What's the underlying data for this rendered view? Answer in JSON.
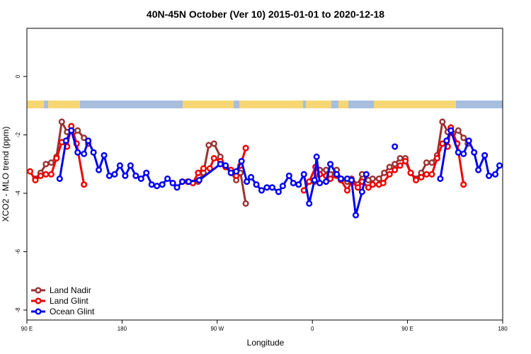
{
  "chart_data": {
    "type": "line",
    "title": "40N-45N October (Ver 10)   2015-01-01 to 2020-12-18",
    "xlabel": "Longitude",
    "ylabel": "XCO2 - MLO trend (ppm)",
    "xlim": [
      90,
      540
    ],
    "ylim": [
      -8.34,
      1.65
    ],
    "xticks": [
      {
        "value": 90,
        "label": "90 E"
      },
      180,
      {
        "value": 270,
        "label": "90 W"
      },
      {
        "value": 360,
        "label": "0"
      },
      {
        "value": 450,
        "label": "90 E"
      },
      {
        "value": 540,
        "label": "180"
      }
    ],
    "yticks": [
      0,
      -2,
      -4,
      -6,
      -8
    ],
    "legend": "bottom-left",
    "series": [
      {
        "name": "Land Nadir",
        "color": "#993333",
        "x": [
          98,
          103,
          108,
          113,
          118,
          123,
          128,
          134,
          138,
          144,
          148,
          252,
          257,
          262,
          267,
          273,
          278,
          283,
          288,
          292,
          297,
          362,
          367,
          373,
          377,
          383,
          387,
          393,
          397,
          403,
          407,
          413,
          417,
          423,
          428,
          433,
          438,
          443,
          448,
          453,
          458,
          463,
          468,
          473,
          478,
          483,
          488,
          493,
          498,
          503,
          507
        ],
        "values": [
          -3.5,
          -3.3,
          -3.0,
          -2.95,
          -2.75,
          -1.55,
          -1.9,
          -1.9,
          -1.85,
          -2.1,
          -2.3,
          -3.6,
          -3.3,
          -2.35,
          -2.3,
          -2.75,
          -3.1,
          -3.3,
          -3.55,
          -3.3,
          -4.35,
          -3.6,
          -3.2,
          -3.2,
          -3.35,
          -3.2,
          -3.5,
          -3.6,
          -3.5,
          -3.7,
          -3.35,
          -3.55,
          -3.5,
          -3.5,
          -3.3,
          -3.1,
          -3.0,
          -2.8,
          -2.8,
          -3.3,
          -3.5,
          -3.3,
          -2.95,
          -2.95,
          -2.7,
          -1.55,
          -1.9,
          -1.95,
          -1.85,
          -2.1,
          -2.3
        ]
      },
      {
        "name": "Land Glint",
        "color": "#ee0000",
        "x": [
          93,
          98,
          103,
          108,
          113,
          118,
          123,
          128,
          132,
          137,
          144,
          237,
          242,
          247,
          252,
          257,
          263,
          267,
          273,
          278,
          283,
          288,
          292,
          297,
          352,
          357,
          363,
          367,
          373,
          377,
          383,
          387,
          393,
          397,
          403,
          407,
          413,
          417,
          423,
          427,
          433,
          438,
          443,
          448,
          453,
          458,
          463,
          468,
          473,
          478,
          483,
          488,
          491,
          497,
          503
        ],
        "values": [
          -3.25,
          -3.55,
          -3.4,
          -3.35,
          -3.35,
          -2.8,
          -2.25,
          -2.4,
          -1.7,
          -2.3,
          -3.7,
          -3.6,
          -3.6,
          -3.65,
          -3.3,
          -3.15,
          -3.15,
          -2.8,
          -2.9,
          -3.1,
          -3.2,
          -3.4,
          -3.05,
          -2.45,
          -3.9,
          -3.6,
          -3.1,
          -3.35,
          -3.4,
          -3.5,
          -3.4,
          -3.55,
          -3.9,
          -3.6,
          -3.8,
          -3.6,
          -3.8,
          -3.7,
          -3.7,
          -3.65,
          -3.35,
          -3.2,
          -3.05,
          -2.9,
          -3.3,
          -3.55,
          -3.45,
          -3.35,
          -3.35,
          -2.8,
          -2.3,
          -2.4,
          -1.75,
          -2.3,
          -3.7
        ]
      },
      {
        "name": "Ocean Glint",
        "color": "#0000ee",
        "x": [
          121,
          127,
          132,
          138,
          144,
          148,
          153,
          158,
          163,
          168,
          173,
          178,
          183,
          188,
          193,
          198,
          203,
          208,
          213,
          218,
          223,
          228,
          232,
          237,
          243,
          253,
          273,
          278,
          283,
          288,
          293,
          298,
          302,
          307,
          312,
          317,
          322,
          328,
          332,
          338,
          342,
          347,
          352,
          357,
          362,
          364,
          367,
          373,
          377,
          383,
          387,
          393,
          397,
          401,
          407,
          411,
          438,
          481,
          487,
          491,
          498,
          503,
          508,
          513,
          517,
          523,
          527,
          533,
          537
        ],
        "values": [
          -3.5,
          -2.2,
          -1.85,
          -2.6,
          -2.65,
          -2.2,
          -2.6,
          -3.2,
          -2.7,
          -3.4,
          -3.35,
          -3.05,
          -3.4,
          -3.05,
          -3.4,
          -3.5,
          -3.3,
          -3.7,
          -3.75,
          -3.7,
          -3.5,
          -3.65,
          -3.8,
          -3.6,
          -3.6,
          -3.55,
          -3.0,
          -3.05,
          -3.3,
          -3.25,
          -2.9,
          -3.6,
          -3.45,
          -3.7,
          -3.9,
          -3.8,
          -3.8,
          -3.95,
          -3.75,
          -3.4,
          -3.65,
          -3.7,
          -3.35,
          -4.35,
          -3.55,
          -2.75,
          -3.65,
          -3.6,
          -3.0,
          -3.35,
          -3.5,
          -3.5,
          -3.55,
          -4.75,
          -3.95,
          -3.35,
          -2.4,
          -3.5,
          -2.2,
          -1.85,
          -2.6,
          -2.65,
          -2.2,
          -2.6,
          -3.2,
          -2.7,
          -3.4,
          -3.35,
          -3.05
        ]
      }
    ]
  }
}
